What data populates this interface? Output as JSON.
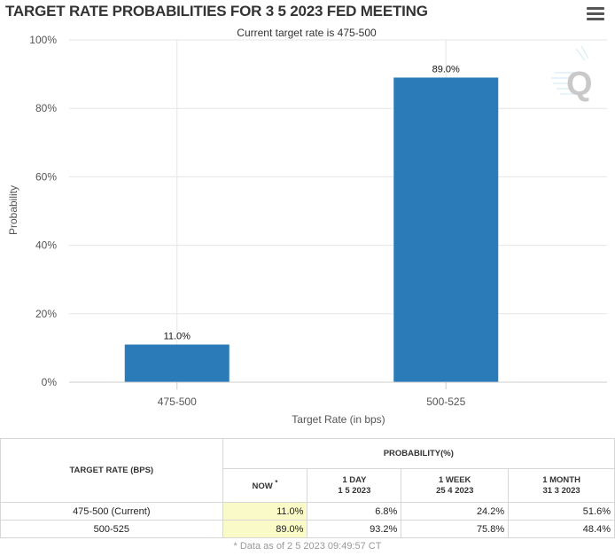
{
  "page": {
    "title": "TARGET RATE PROBABILITIES FOR 3 5 2023 FED MEETING"
  },
  "chart_data": {
    "type": "bar",
    "title": "TARGET RATE PROBABILITIES FOR 3 5 2023 FED MEETING",
    "subtitle": "Current target rate is 475-500",
    "xlabel": "Target Rate (in bps)",
    "ylabel": "Probability",
    "categories": [
      "475-500",
      "500-525"
    ],
    "values": [
      11.0,
      89.0
    ],
    "data_labels": [
      "11.0%",
      "89.0%"
    ],
    "ylim": [
      0,
      100
    ],
    "yticks": [
      0,
      20,
      40,
      60,
      80,
      100
    ],
    "ytick_labels": [
      "0%",
      "20%",
      "40%",
      "60%",
      "80%",
      "100%"
    ],
    "grid": true,
    "bar_color": "#2b7bb9"
  },
  "table": {
    "col_target": "TARGET RATE (BPS)",
    "col_probability": "PROBABILITY(%)",
    "col_now": "NOW",
    "col_now_marker": "*",
    "col_1day": "1 DAY",
    "col_1day_date": "1 5 2023",
    "col_1week": "1 WEEK",
    "col_1week_date": "25 4 2023",
    "col_1month": "1 MONTH",
    "col_1month_date": "31 3 2023",
    "rows": [
      {
        "target": "475-500 (Current)",
        "now": "11.0%",
        "day": "6.8%",
        "week": "24.2%",
        "month": "51.6%"
      },
      {
        "target": "500-525",
        "now": "89.0%",
        "day": "93.2%",
        "week": "75.8%",
        "month": "48.4%"
      }
    ],
    "footnote": "* Data as of 2 5 2023 09:49:57 CT"
  }
}
